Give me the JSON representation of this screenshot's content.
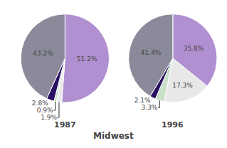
{
  "title": "Midwest",
  "chart_data": [
    {
      "type": "pie",
      "title": "1987",
      "values": [
        51.2,
        1.9,
        0.9,
        2.8,
        43.2
      ],
      "value_labels": [
        "51.2%",
        "1.9%",
        "0.9%",
        "2.8%",
        "43.2%"
      ],
      "colors": [
        "#b090d0",
        "#e8e8e8",
        "#c8dfc8",
        "#2a1060",
        "#8a8a9a"
      ],
      "data_labels": true
    },
    {
      "type": "pie",
      "title": "1996",
      "values": [
        35.8,
        17.3,
        3.3,
        2.1,
        41.4
      ],
      "value_labels": [
        "35.8%",
        "17.3%",
        "3.3%",
        "2.1%",
        "41.4%"
      ],
      "colors": [
        "#b090d0",
        "#e8e8e8",
        "#c8dfc8",
        "#2a1060",
        "#8a8a9a"
      ],
      "data_labels": true
    }
  ]
}
